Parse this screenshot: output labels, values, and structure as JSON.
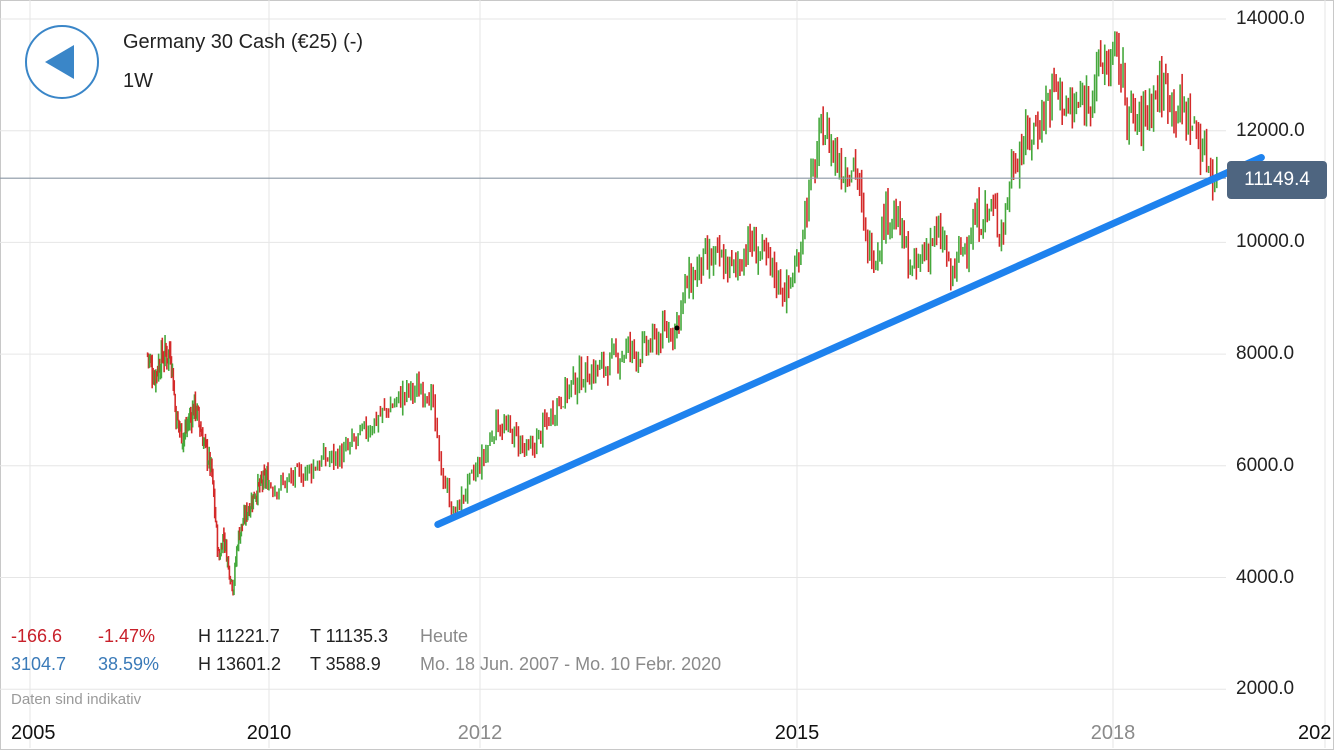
{
  "header": {
    "title": "Germany 30 Cash (€25) (-)",
    "interval": "1W"
  },
  "stats": {
    "today": {
      "change": "-166.6",
      "change_pct": "-1.47%",
      "high": "H 11221.7",
      "low": "T 11135.3",
      "label": "Heute"
    },
    "period": {
      "change": "3104.7",
      "change_pct": "38.59%",
      "high": "H 13601.2",
      "low": "T 3588.9",
      "label": "Mo. 18 Jun. 2007 - Mo. 10 Febr. 2020"
    }
  },
  "disclaimer": "Daten sind indikativ",
  "current_price": "11149.4",
  "colors": {
    "up": "#45a83c",
    "down": "#d42a2a",
    "trendline": "#1e82ee",
    "price_tag": "#4e6580",
    "back_button": "#3a86c8"
  },
  "icons": {
    "back": "back-arrow-icon"
  },
  "chart_data": {
    "type": "candlestick",
    "title": "Germany 30 Cash (€25) (-)",
    "interval": "1W",
    "ylim": [
      1800,
      14200
    ],
    "y_ticks": [
      "14000.0",
      "12000.0",
      "10000.0",
      "8000.0",
      "6000.0",
      "4000.0",
      "2000.0"
    ],
    "x_ticks": [
      "2005",
      "2010",
      "2012",
      "2015",
      "2018",
      "202"
    ],
    "grid": true,
    "current_price": 11149.4,
    "period_high": 13601.2,
    "period_low": 3588.9,
    "trendline": {
      "from": [
        2011.6,
        4950
      ],
      "to": [
        2019.4,
        11520
      ]
    },
    "price_path": [
      [
        2007.46,
        8000
      ],
      [
        2007.6,
        7600
      ],
      [
        2007.75,
        7950
      ],
      [
        2007.95,
        8050
      ],
      [
        2008.05,
        6900
      ],
      [
        2008.2,
        6500
      ],
      [
        2008.45,
        7100
      ],
      [
        2008.6,
        6550
      ],
      [
        2008.8,
        5900
      ],
      [
        2008.95,
        4300
      ],
      [
        2009.05,
        4800
      ],
      [
        2009.15,
        4200
      ],
      [
        2009.25,
        3800
      ],
      [
        2009.35,
        4700
      ],
      [
        2009.5,
        5100
      ],
      [
        2009.7,
        5500
      ],
      [
        2009.95,
        5800
      ],
      [
        2010.05,
        5600
      ],
      [
        2010.4,
        5950
      ],
      [
        2010.5,
        6100
      ],
      [
        2010.7,
        6200
      ],
      [
        2010.85,
        6500
      ],
      [
        2011.05,
        6900
      ],
      [
        2011.3,
        7300
      ],
      [
        2011.5,
        7400
      ],
      [
        2011.55,
        7100
      ],
      [
        2011.62,
        6000
      ],
      [
        2011.7,
        5500
      ],
      [
        2011.75,
        5100
      ],
      [
        2011.9,
        5700
      ],
      [
        2012.05,
        6200
      ],
      [
        2012.15,
        6800
      ],
      [
        2012.35,
        6500
      ],
      [
        2012.45,
        6200
      ],
      [
        2012.55,
        6500
      ],
      [
        2012.75,
        7200
      ],
      [
        2012.95,
        7600
      ],
      [
        2013.2,
        7800
      ],
      [
        2013.4,
        8100
      ],
      [
        2013.5,
        8000
      ],
      [
        2013.7,
        8300
      ],
      [
        2013.85,
        8500
      ],
      [
        2013.95,
        9200
      ],
      [
        2014.1,
        9600
      ],
      [
        2014.25,
        9700
      ],
      [
        2014.4,
        9500
      ],
      [
        2014.55,
        10000
      ],
      [
        2014.7,
        9700
      ],
      [
        2014.8,
        9400
      ],
      [
        2014.9,
        9100
      ],
      [
        2015.0,
        9600
      ],
      [
        2015.05,
        10300
      ],
      [
        2015.15,
        11200
      ],
      [
        2015.25,
        12100
      ],
      [
        2015.35,
        11600
      ],
      [
        2015.45,
        11300
      ],
      [
        2015.55,
        11500
      ],
      [
        2015.65,
        10000
      ],
      [
        2015.75,
        9800
      ],
      [
        2015.85,
        10600
      ],
      [
        2015.95,
        10400
      ],
      [
        2016.1,
        9400
      ],
      [
        2016.2,
        9800
      ],
      [
        2016.3,
        10100
      ],
      [
        2016.4,
        10000
      ],
      [
        2016.45,
        9300
      ],
      [
        2016.55,
        9800
      ],
      [
        2016.7,
        10400
      ],
      [
        2016.85,
        10600
      ],
      [
        2016.95,
        10200
      ],
      [
        2017.05,
        11500
      ],
      [
        2017.25,
        12000
      ],
      [
        2017.45,
        12800
      ],
      [
        2017.6,
        12300
      ],
      [
        2017.75,
        12600
      ],
      [
        2017.9,
        13200
      ],
      [
        2018.05,
        13300
      ],
      [
        2018.15,
        12300
      ],
      [
        2018.25,
        12100
      ],
      [
        2018.4,
        12700
      ],
      [
        2018.5,
        12800
      ],
      [
        2018.6,
        12400
      ],
      [
        2018.7,
        12300
      ],
      [
        2018.8,
        11900
      ],
      [
        2018.9,
        11400
      ],
      [
        2018.98,
        11150
      ]
    ]
  }
}
